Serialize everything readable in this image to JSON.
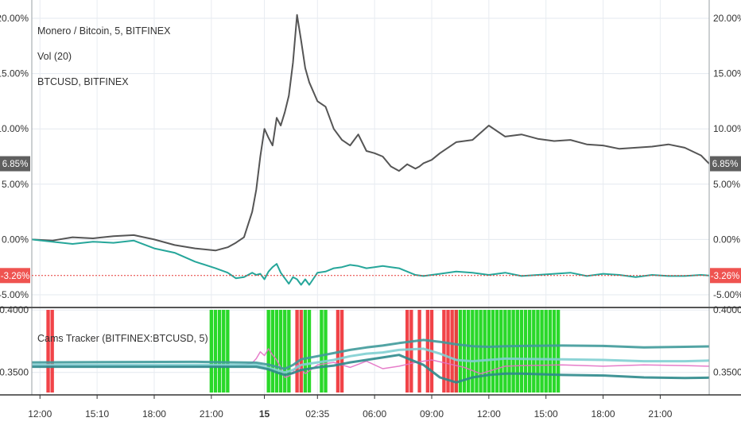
{
  "chart_data": [
    {
      "type": "line",
      "title": "Monero / Bitcoin, 5, BITFINEX",
      "overlays": [
        "Vol (20)",
        "BTCUSD, BITFINEX"
      ],
      "y_ticks": [
        "20.00%",
        "15.00%",
        "10.00%",
        "5.00%",
        "0.00%",
        "-5.00%"
      ],
      "ylim": [
        -5.5,
        20.5
      ],
      "last_value_label": "6.85%",
      "overlay_value_label": "-3.26%",
      "series": [
        {
          "name": "Monero / Bitcoin",
          "color": "#555555",
          "x": [
            0,
            5,
            10,
            15,
            20,
            25,
            30,
            35,
            40,
            45,
            48,
            50,
            52,
            54,
            55,
            56,
            57,
            58,
            59,
            60,
            61,
            62,
            63,
            64,
            65,
            66,
            67,
            68,
            70,
            72,
            74,
            76,
            78,
            80,
            82,
            84,
            86,
            88,
            90,
            92,
            94,
            95,
            96,
            98,
            100,
            104,
            108,
            112,
            116,
            120,
            124,
            128,
            132,
            136,
            140,
            144,
            148,
            152,
            156,
            160,
            164,
            166
          ],
          "y": [
            0.0,
            -0.1,
            0.2,
            0.1,
            0.3,
            0.4,
            0.0,
            -0.5,
            -0.8,
            -1.0,
            -0.7,
            -0.3,
            0.2,
            2.5,
            4.5,
            7.5,
            10.0,
            9.2,
            8.5,
            11.0,
            10.3,
            11.5,
            13.0,
            16.0,
            20.3,
            18.0,
            15.5,
            14.2,
            12.5,
            12.0,
            10.0,
            9.0,
            8.5,
            9.5,
            8.0,
            7.8,
            7.5,
            6.6,
            6.2,
            6.8,
            6.4,
            6.6,
            6.9,
            7.2,
            7.8,
            8.8,
            9.0,
            10.3,
            9.3,
            9.5,
            9.1,
            8.9,
            9.0,
            8.6,
            8.5,
            8.2,
            8.3,
            8.4,
            8.6,
            8.3,
            7.6,
            6.85
          ]
        },
        {
          "name": "BTCUSD, BITFINEX",
          "color": "#26a69a",
          "x": [
            0,
            5,
            10,
            15,
            20,
            25,
            30,
            35,
            40,
            45,
            48,
            50,
            52,
            54,
            55,
            56,
            57,
            58,
            59,
            60,
            61,
            62,
            63,
            64,
            65,
            66,
            67,
            68,
            70,
            72,
            74,
            76,
            78,
            80,
            82,
            84,
            86,
            88,
            90,
            92,
            94,
            96,
            98,
            100,
            104,
            108,
            112,
            116,
            120,
            124,
            128,
            132,
            136,
            140,
            144,
            148,
            152,
            156,
            160,
            164,
            166
          ],
          "y": [
            0.0,
            -0.2,
            -0.4,
            -0.2,
            -0.3,
            -0.1,
            -0.8,
            -1.2,
            -2.0,
            -2.6,
            -3.0,
            -3.5,
            -3.4,
            -3.0,
            -3.2,
            -3.1,
            -3.6,
            -2.9,
            -2.5,
            -2.2,
            -3.0,
            -3.5,
            -4.0,
            -3.4,
            -3.6,
            -4.1,
            -3.6,
            -4.1,
            -3.0,
            -2.9,
            -2.6,
            -2.5,
            -2.3,
            -2.4,
            -2.6,
            -2.5,
            -2.4,
            -2.5,
            -2.6,
            -2.9,
            -3.2,
            -3.3,
            -3.2,
            -3.1,
            -2.9,
            -3.0,
            -3.2,
            -3.0,
            -3.3,
            -3.2,
            -3.1,
            -3.0,
            -3.3,
            -3.1,
            -3.2,
            -3.4,
            -3.2,
            -3.3,
            -3.3,
            -3.2,
            -3.26
          ]
        }
      ]
    },
    {
      "type": "line",
      "title": "Cams Tracker (BITFINEX:BTCUSD, 5)",
      "y_ticks": [
        "0.4000",
        "0.3500"
      ],
      "ylim": [
        0.332,
        0.402
      ],
      "series": [
        {
          "name": "Cams Tracker",
          "color": "#e36fc4",
          "x": [
            0,
            20,
            40,
            50,
            52,
            54,
            55,
            56,
            57,
            58,
            59,
            60,
            61,
            62,
            63,
            64,
            65,
            66,
            67,
            70,
            74,
            78,
            82,
            86,
            90,
            94,
            98,
            102,
            106,
            110,
            116,
            120,
            130,
            140,
            150,
            160,
            166
          ],
          "y": [
            0.3555,
            0.3555,
            0.355,
            0.3552,
            0.356,
            0.3575,
            0.361,
            0.3665,
            0.3635,
            0.369,
            0.364,
            0.36,
            0.354,
            0.346,
            0.347,
            0.35,
            0.356,
            0.353,
            0.349,
            0.356,
            0.358,
            0.354,
            0.359,
            0.353,
            0.355,
            0.358,
            0.36,
            0.357,
            0.354,
            0.349,
            0.355,
            0.3555,
            0.356,
            0.355,
            0.356,
            0.3555,
            0.355
          ]
        },
        {
          "name": "Cams Tracker upper band",
          "color": "#3f9a9a",
          "x": [
            0,
            40,
            55,
            58,
            60,
            62,
            64,
            66,
            70,
            74,
            78,
            82,
            86,
            90,
            96,
            100,
            104,
            108,
            112,
            116,
            120,
            130,
            140,
            150,
            160,
            166
          ],
          "y": [
            0.358,
            0.3585,
            0.3578,
            0.3562,
            0.3545,
            0.3528,
            0.356,
            0.3605,
            0.363,
            0.3655,
            0.368,
            0.37,
            0.3715,
            0.3735,
            0.376,
            0.3745,
            0.3725,
            0.371,
            0.3705,
            0.371,
            0.3712,
            0.3715,
            0.3712,
            0.37,
            0.3705,
            0.3708
          ]
        },
        {
          "name": "Cams Tracker basis",
          "color": "#7fcfd1",
          "x": [
            0,
            40,
            55,
            60,
            62,
            64,
            66,
            70,
            74,
            78,
            82,
            86,
            90,
            96,
            100,
            104,
            108,
            112,
            116,
            120,
            130,
            140,
            150,
            160,
            166
          ],
          "y": [
            0.356,
            0.356,
            0.356,
            0.352,
            0.35,
            0.352,
            0.356,
            0.358,
            0.36,
            0.363,
            0.365,
            0.366,
            0.368,
            0.369,
            0.365,
            0.36,
            0.359,
            0.36,
            0.361,
            0.3608,
            0.3605,
            0.36,
            0.359,
            0.359,
            0.3595
          ]
        },
        {
          "name": "Cams Tracker lower band",
          "color": "#2e8a8c",
          "x": [
            0,
            40,
            55,
            58,
            60,
            62,
            64,
            66,
            70,
            74,
            78,
            82,
            86,
            90,
            96,
            100,
            104,
            108,
            112,
            116,
            120,
            130,
            140,
            150,
            160,
            166
          ],
          "y": [
            0.3545,
            0.3545,
            0.3545,
            0.3525,
            0.35,
            0.348,
            0.3495,
            0.352,
            0.354,
            0.3555,
            0.358,
            0.36,
            0.362,
            0.364,
            0.356,
            0.346,
            0.342,
            0.346,
            0.348,
            0.349,
            0.349,
            0.348,
            0.3475,
            0.346,
            0.3455,
            0.3458
          ]
        }
      ],
      "signals": {
        "green": [
          44,
          45,
          46,
          47,
          48,
          58,
          59,
          60,
          61,
          62,
          63,
          67,
          68,
          71,
          72,
          104,
          105,
          106,
          107,
          108,
          109,
          110,
          111,
          112,
          113,
          114,
          115,
          116,
          117,
          118,
          119,
          120,
          121,
          122,
          123,
          124,
          125,
          126,
          127,
          128,
          129
        ],
        "red": [
          4,
          5,
          65,
          66,
          75,
          76,
          92,
          93,
          95,
          97,
          98,
          101,
          102,
          103,
          104
        ]
      }
    }
  ],
  "x_ticks": [
    {
      "label": "12:00",
      "x": 2
    },
    {
      "label": "15:10",
      "x": 16
    },
    {
      "label": "18:00",
      "x": 30
    },
    {
      "label": "21:00",
      "x": 44
    },
    {
      "label": "15",
      "x": 57,
      "bold": true
    },
    {
      "label": "02:35",
      "x": 70
    },
    {
      "label": "06:00",
      "x": 84
    },
    {
      "label": "09:00",
      "x": 98
    },
    {
      "label": "12:00",
      "x": 112
    },
    {
      "label": "15:00",
      "x": 126
    },
    {
      "label": "18:00",
      "x": 140
    },
    {
      "label": "21:00",
      "x": 154
    }
  ]
}
